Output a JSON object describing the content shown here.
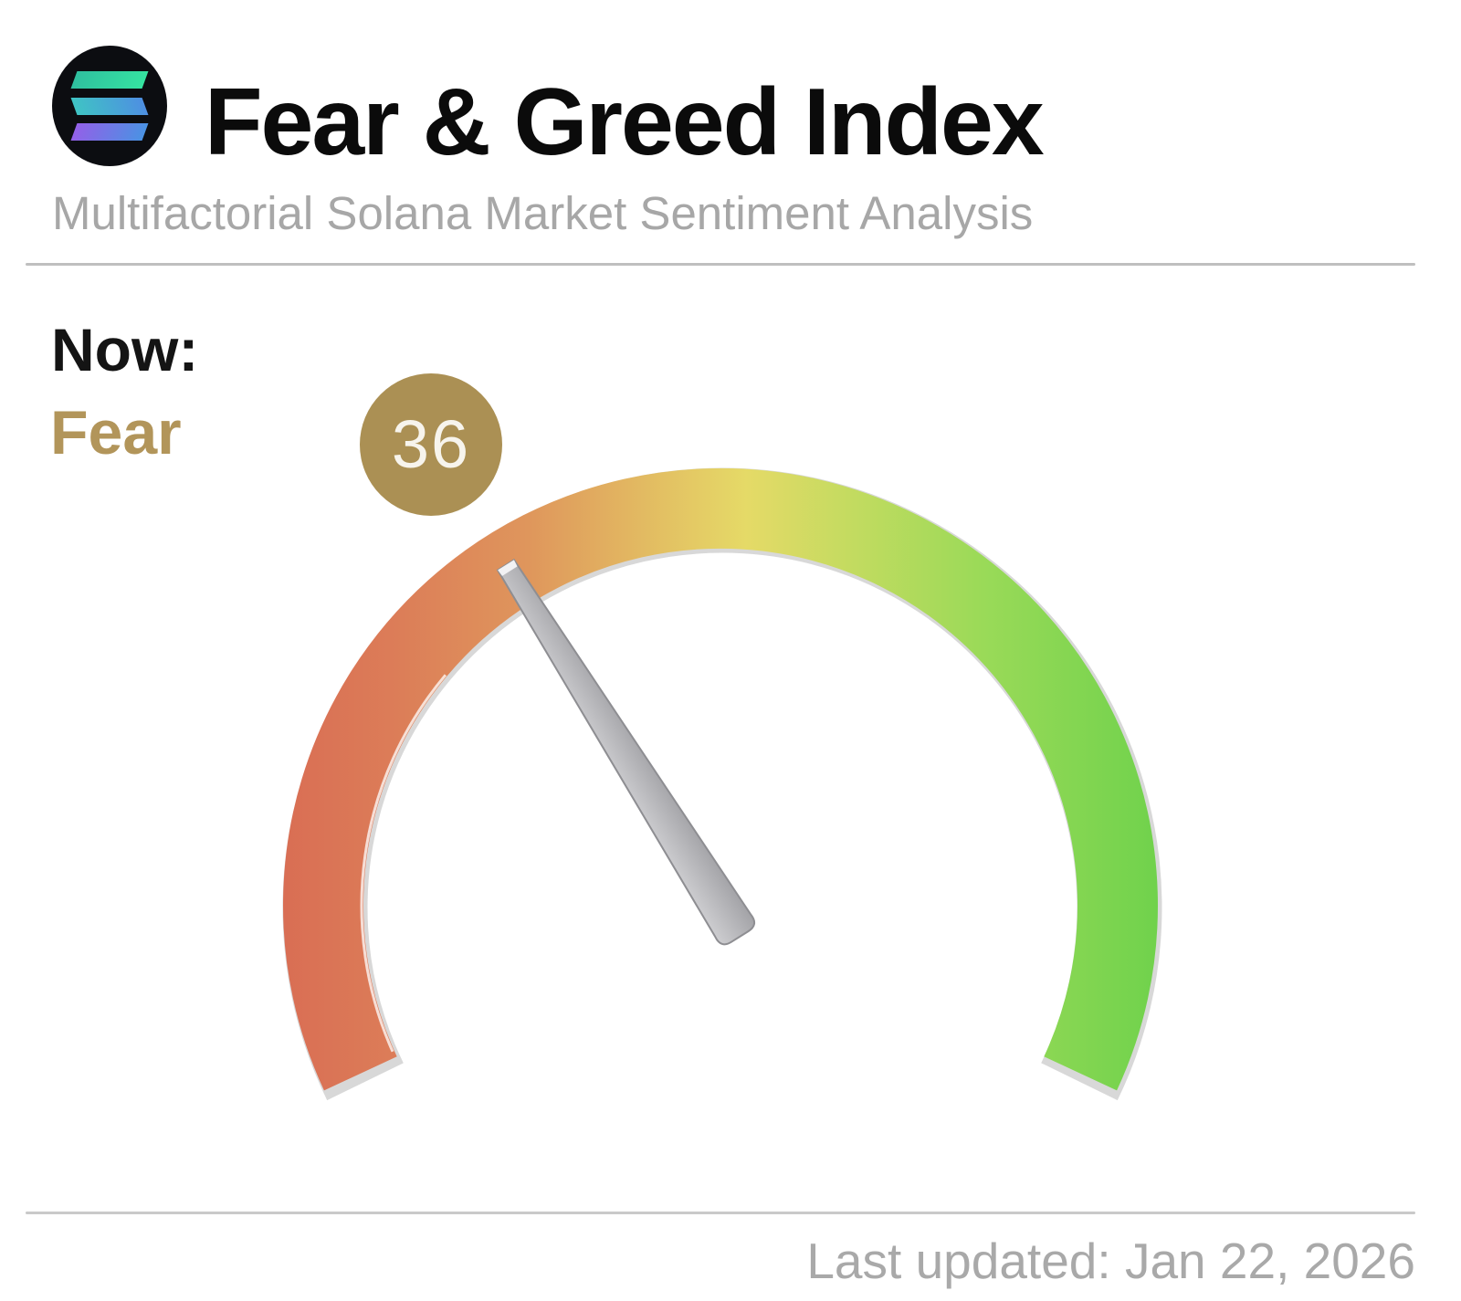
{
  "header": {
    "title": "Fear & Greed Index",
    "subtitle": "Multifactorial Solana Market Sentiment Analysis",
    "logo": "solana-logo"
  },
  "status": {
    "label": "Now:",
    "sentiment": "Fear",
    "value": "36"
  },
  "footer": {
    "last_updated": "Last updated: Jan 22, 2026"
  },
  "colors": {
    "gold_badge": "#ab9054",
    "fear_text": "#b2955a",
    "badge_text": "#f7f4ec",
    "title_text": "#0b0b0b",
    "subtitle_text": "#a7a7a7",
    "footer_text": "#a9a9a9",
    "needle": "#b3b3b7",
    "gauge_red": "#d96e54",
    "gauge_yellow": "#e5da67",
    "gauge_green": "#70d24c"
  },
  "chart_data": {
    "type": "gauge",
    "title": "Fear & Greed Index",
    "subtitle": "Multifactorial Solana Market Sentiment Analysis",
    "value": 36,
    "min": 0,
    "max": 100,
    "sentiment": "Fear",
    "arc_span_degrees": 230,
    "color_scale": [
      {
        "stop": 0.0,
        "color": "#d96e54"
      },
      {
        "stop": 0.13,
        "color": "#dc7d58"
      },
      {
        "stop": 0.28,
        "color": "#df965c"
      },
      {
        "stop": 0.44,
        "color": "#e3c263"
      },
      {
        "stop": 0.53,
        "color": "#e5da67"
      },
      {
        "stop": 0.65,
        "color": "#c3db60"
      },
      {
        "stop": 0.8,
        "color": "#9ada58"
      },
      {
        "stop": 1.0,
        "color": "#70d24c"
      }
    ],
    "legend_position": "none",
    "grid": false
  }
}
